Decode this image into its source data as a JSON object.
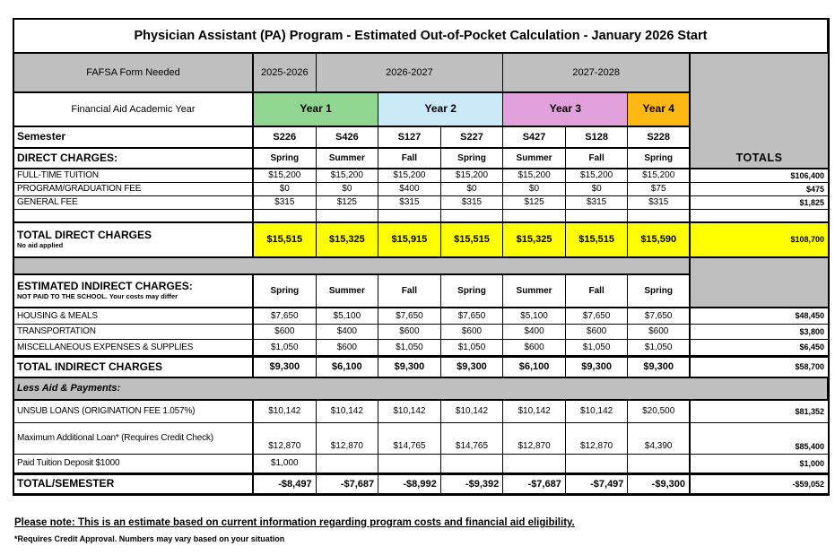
{
  "title": "Physician Assistant (PA) Program - Estimated Out-of-Pocket Calculation - January 2026 Start",
  "colors": {
    "year1_green": "#90d690",
    "year2_blue": "#c9e9f6",
    "year3_pink": "#e2a0dc",
    "year4_orange": "#fdb813",
    "header_gray": "#bfbfbf",
    "highlight_yellow": "#ffff00"
  },
  "fafsa_row": {
    "label": "FAFSA Form Needed",
    "spans": [
      "2025-2026",
      "2026-2027",
      "2027-2028"
    ]
  },
  "year_row": {
    "label": "Financial Aid Academic Year",
    "years": [
      "Year 1",
      "Year 2",
      "Year 3",
      "Year 4"
    ]
  },
  "semester_row": {
    "label": "Semester",
    "codes": [
      "S226",
      "S426",
      "S127",
      "S227",
      "S427",
      "S128",
      "S228"
    ]
  },
  "terms": [
    "Spring",
    "Summer",
    "Fall",
    "Spring",
    "Summer",
    "Fall",
    "Spring"
  ],
  "totals_header": "TOTALS",
  "direct": {
    "header": "DIRECT CHARGES:",
    "rows": [
      {
        "label": "FULL-TIME TUITION",
        "values": [
          "$15,200",
          "$15,200",
          "$15,200",
          "$15,200",
          "$15,200",
          "$15,200",
          "$15,200"
        ],
        "total": "$106,400"
      },
      {
        "label": "PROGRAM/GRADUATION FEE",
        "values": [
          "$0",
          "$0",
          "$400",
          "$0",
          "$0",
          "$0",
          "$75"
        ],
        "total": "$475"
      },
      {
        "label": "GENERAL FEE",
        "values": [
          "$315",
          "$125",
          "$315",
          "$315",
          "$125",
          "$315",
          "$315"
        ],
        "total": "$1,825"
      }
    ],
    "total_row": {
      "label": "TOTAL DIRECT CHARGES",
      "sublabel": "No aid applied",
      "values": [
        "$15,515",
        "$15,325",
        "$15,915",
        "$15,515",
        "$15,325",
        "$15,515",
        "$15,590"
      ],
      "total": "$108,700"
    }
  },
  "indirect": {
    "header": "ESTIMATED INDIRECT CHARGES:",
    "subheader": "NOT PAID TO THE SCHOOL. Your costs may differ",
    "rows": [
      {
        "label": "HOUSING & MEALS",
        "values": [
          "$7,650",
          "$5,100",
          "$7,650",
          "$7,650",
          "$5,100",
          "$7,650",
          "$7,650"
        ],
        "total": "$48,450"
      },
      {
        "label": "TRANSPORTATION",
        "values": [
          "$600",
          "$400",
          "$600",
          "$600",
          "$400",
          "$600",
          "$600"
        ],
        "total": "$3,800"
      },
      {
        "label": "MISCELLANEOUS EXPENSES & SUPPLIES",
        "values": [
          "$1,050",
          "$600",
          "$1,050",
          "$1,050",
          "$600",
          "$1,050",
          "$1,050"
        ],
        "total": "$6,450"
      }
    ],
    "total_row": {
      "label": "TOTAL INDIRECT CHARGES",
      "values": [
        "$9,300",
        "$6,100",
        "$9,300",
        "$9,300",
        "$6,100",
        "$9,300",
        "$9,300"
      ],
      "total": "$58,700"
    }
  },
  "less_aid": {
    "header": "Less Aid & Payments:",
    "rows": [
      {
        "label": "UNSUB LOANS (ORIGINATION FEE 1.057%)",
        "values": [
          "$10,142",
          "$10,142",
          "$10,142",
          "$10,142",
          "$10,142",
          "$10,142",
          "$20,500"
        ],
        "total": "$81,352"
      },
      {
        "label": "Maximum Additional Loan* (Requires Credit Check)",
        "values": [
          "$12,870",
          "$12,870",
          "$14,765",
          "$14,765",
          "$12,870",
          "$12,870",
          "$4,390"
        ],
        "total": "$85,400"
      },
      {
        "label": "Paid Tuition Deposit $1000",
        "values": [
          "$1,000",
          "",
          "",
          "",
          "",
          "",
          ""
        ],
        "total": "$1,000"
      }
    ],
    "total_row": {
      "label": "TOTAL/SEMESTER",
      "values": [
        "-$8,497",
        "-$7,687",
        "-$8,992",
        "-$9,392",
        "-$7,687",
        "-$7,497",
        "-$9,300"
      ],
      "total": "-$59,052"
    }
  },
  "notes": {
    "note1": "Please note: This is an estimate based on current information regarding program costs and financial aid eligibility.",
    "note2": "*Requires Credit Approval. Numbers may vary based on your situation"
  }
}
